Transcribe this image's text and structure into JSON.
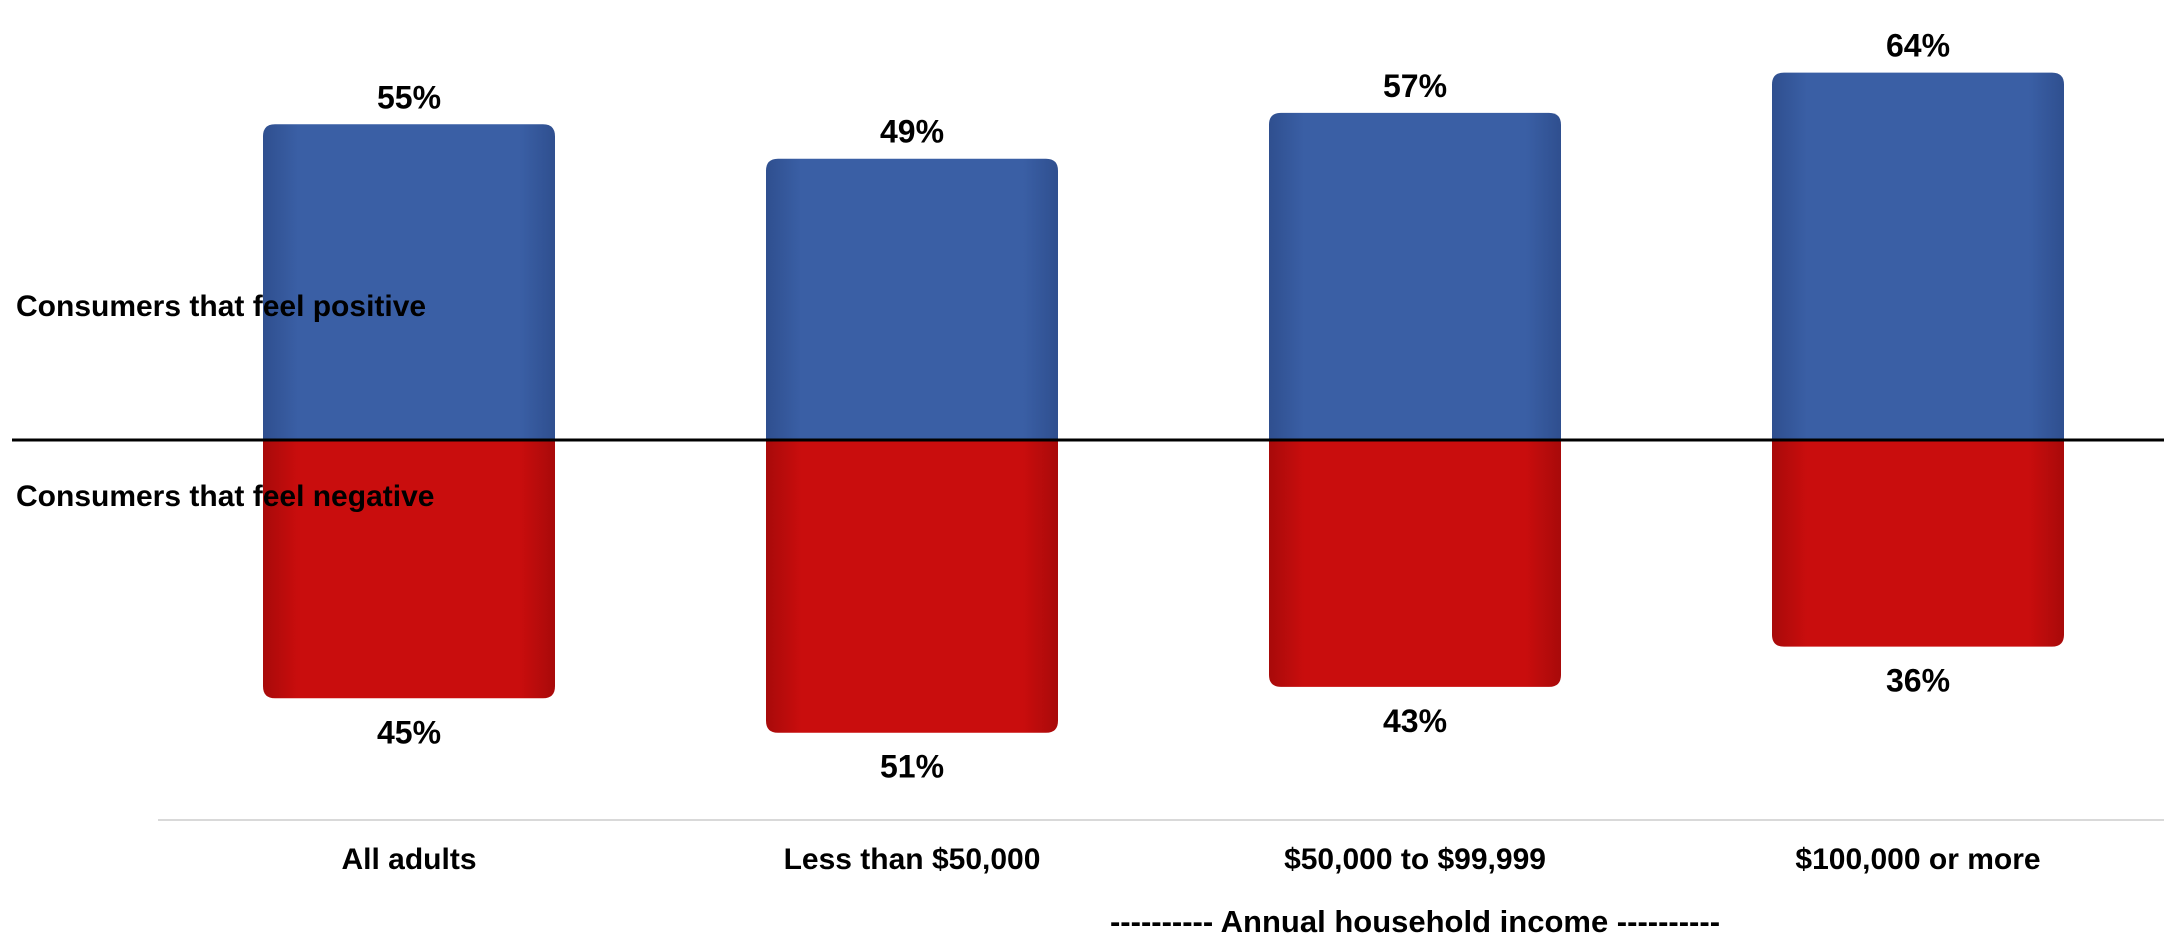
{
  "chart_data": {
    "type": "bar",
    "categories": [
      "All adults",
      "Less than $50,000",
      "$50,000 to $99,999",
      "$100,000 or more"
    ],
    "series": [
      {
        "name": "Consumers that feel positive",
        "values": [
          55,
          49,
          57,
          64
        ],
        "labels": [
          "55%",
          "49%",
          "57%",
          "64%"
        ],
        "color": "#3a5fa5"
      },
      {
        "name": "Consumers that feel negative",
        "values": [
          45,
          51,
          43,
          36
        ],
        "labels": [
          "45%",
          "51%",
          "43%",
          "36%"
        ],
        "color": "#c90d0d"
      }
    ],
    "xlabel": "---------- Annual household income ----------",
    "ylabel": "",
    "ylim": [
      -60,
      70
    ],
    "grid": false
  }
}
